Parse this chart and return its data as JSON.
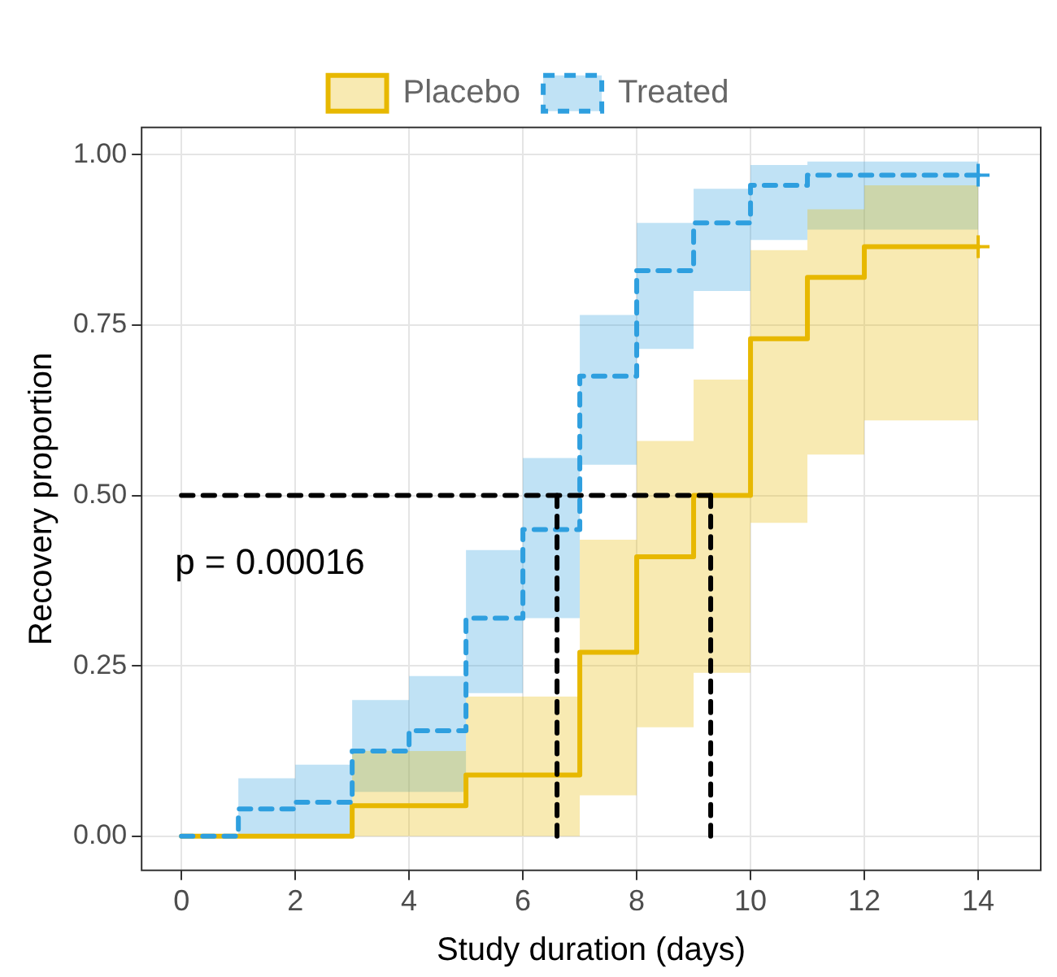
{
  "chart_data": {
    "type": "step",
    "xlabel": "Study duration (days)",
    "ylabel": "Recovery proportion",
    "annotations": [
      "p = 0.00016"
    ],
    "xlim": [
      -0.7,
      15.1
    ],
    "xticks": [
      0,
      2,
      4,
      6,
      8,
      10,
      12,
      14
    ],
    "ylim": [
      -0.05,
      1.04
    ],
    "yticks": [
      {
        "value": 0,
        "label": "0.00"
      },
      {
        "value": 0.25,
        "label": "0.25"
      },
      {
        "value": 0.5,
        "label": "0.50"
      },
      {
        "value": 0.75,
        "label": "0.75"
      },
      {
        "value": 1,
        "label": "1.00"
      }
    ],
    "grid": true,
    "legend": "top",
    "series": [
      {
        "name": "Placebo",
        "color": "#e7b800",
        "line_style": "solid",
        "x": [
          0,
          3,
          5,
          7,
          8,
          9,
          10,
          11,
          12,
          14
        ],
        "values": [
          0,
          0.045,
          0.09,
          0.27,
          0.41,
          0.5,
          0.73,
          0.82,
          0.865,
          0.865
        ],
        "upper": [
          0,
          0.125,
          0.205,
          0.435,
          0.58,
          0.67,
          0.86,
          0.92,
          0.955,
          0.955
        ],
        "lower": [
          0,
          0,
          0,
          0.06,
          0.16,
          0.24,
          0.46,
          0.56,
          0.61,
          0.61
        ]
      },
      {
        "name": "Treated",
        "color": "#2e9fdf",
        "line_style": "dashed",
        "x": [
          0,
          1,
          2,
          3,
          4,
          5,
          6,
          7,
          8,
          9,
          10,
          11,
          14
        ],
        "values": [
          0,
          0.04,
          0.05,
          0.125,
          0.155,
          0.32,
          0.45,
          0.675,
          0.83,
          0.9,
          0.955,
          0.97,
          0.97
        ],
        "upper": [
          0,
          0.085,
          0.105,
          0.2,
          0.235,
          0.42,
          0.555,
          0.765,
          0.9,
          0.95,
          0.985,
          0.99,
          0.99
        ],
        "lower": [
          0,
          0,
          0,
          0.065,
          0.065,
          0.21,
          0.32,
          0.545,
          0.715,
          0.8,
          0.875,
          0.89,
          0.89
        ]
      },
      {
        "type": "scatter",
        "color": "#e7b800",
        "marker": "cross",
        "x": [
          14
        ],
        "values": [
          0.865
        ]
      },
      {
        "type": "scatter",
        "color": "#2e9fdf",
        "marker": "cross",
        "x": [
          14
        ],
        "values": [
          0.97
        ]
      },
      {
        "type": "line",
        "color": "#000000",
        "line_style": "dashed",
        "x": [
          0,
          9.3
        ],
        "values": [
          0.5,
          0.5
        ]
      },
      {
        "type": "line",
        "color": "#000000",
        "line_style": "dashed",
        "x": [
          6.6,
          6.6
        ],
        "values": [
          0,
          0.5
        ]
      },
      {
        "type": "line",
        "color": "#000000",
        "line_style": "dashed",
        "x": [
          9.3,
          9.3
        ],
        "values": [
          0,
          0.5
        ]
      }
    ]
  }
}
